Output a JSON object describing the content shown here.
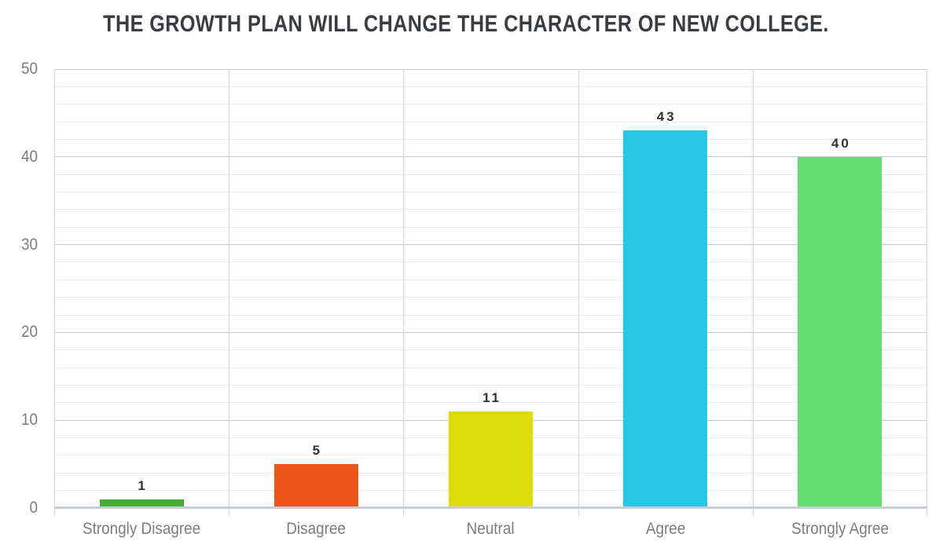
{
  "chart_data": {
    "type": "bar",
    "title": "THE GROWTH PLAN WILL CHANGE THE CHARACTER OF NEW COLLEGE.",
    "categories": [
      "Strongly Disagree",
      "Disagree",
      "Neutral",
      "Agree",
      "Strongly Agree"
    ],
    "values": [
      1,
      5,
      11,
      43,
      40
    ],
    "value_labels": [
      "1",
      "5",
      "11",
      "43",
      "40"
    ],
    "bar_colors": [
      "#47ad33",
      "#ea5419",
      "#dedc0c",
      "#2ac7e6",
      "#62e170"
    ],
    "xlabel": "",
    "ylabel": "",
    "ylim": [
      0,
      50
    ],
    "y_major_ticks": [
      0,
      10,
      20,
      30,
      40,
      50
    ],
    "y_minor_step": 2,
    "grid": true,
    "legend_position": "none",
    "colors": {
      "title_text": "#393c41",
      "axis_text": "#7b7d80",
      "value_label_text": "#303337",
      "minor_gridline": "#e9eaec",
      "major_gridline": "#c7c8ca",
      "baseline": "#c9ced4",
      "column_separator": "#d4d5d7",
      "background": "#ffffff"
    }
  }
}
